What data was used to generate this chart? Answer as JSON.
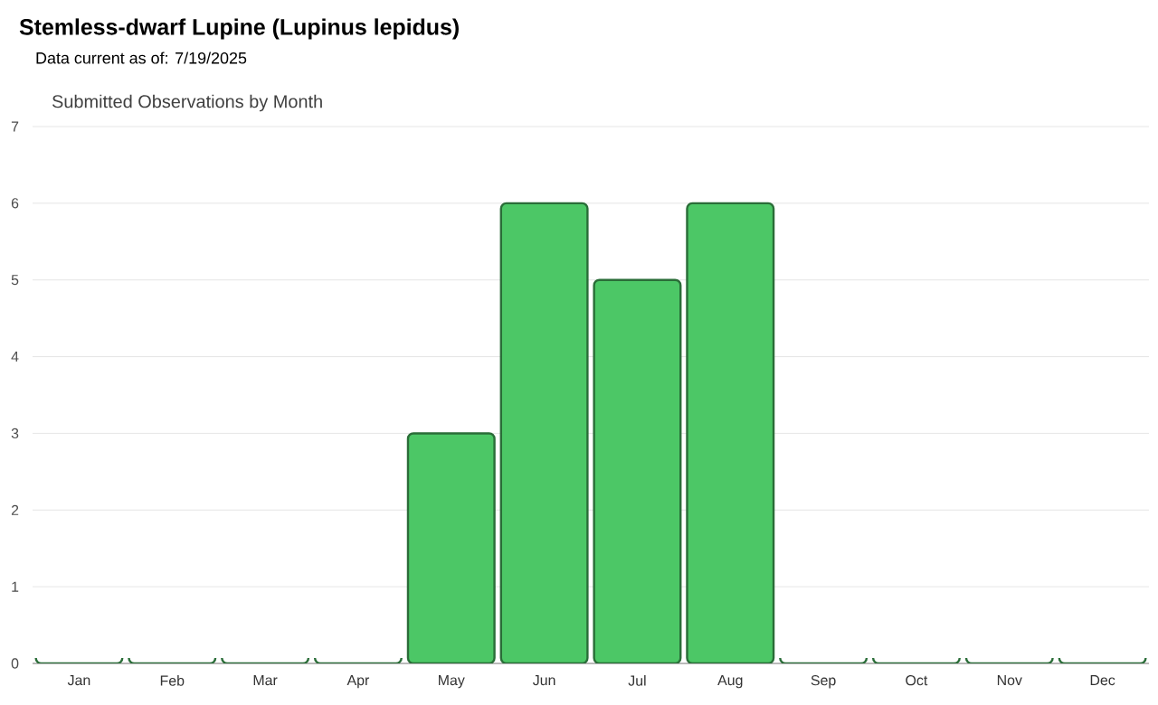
{
  "chart_data": {
    "type": "bar",
    "title": "Stemless-dwarf Lupine   (Lupinus lepidus)",
    "subtitle": "Data current as of: 7/19/2025",
    "annotations": [
      "Submitted Observations by Month"
    ],
    "categories": [
      "Jan",
      "Feb",
      "Mar",
      "Apr",
      "May",
      "Jun",
      "Jul",
      "Aug",
      "Sep",
      "Oct",
      "Nov",
      "Dec"
    ],
    "values": [
      0,
      0,
      0,
      0,
      3,
      6,
      5,
      6,
      0,
      0,
      0,
      0
    ],
    "color": "#4cc766",
    "ylim": [
      0,
      7
    ],
    "yticks": [
      0,
      1,
      2,
      3,
      4,
      5,
      6,
      7
    ],
    "grid": "y"
  }
}
